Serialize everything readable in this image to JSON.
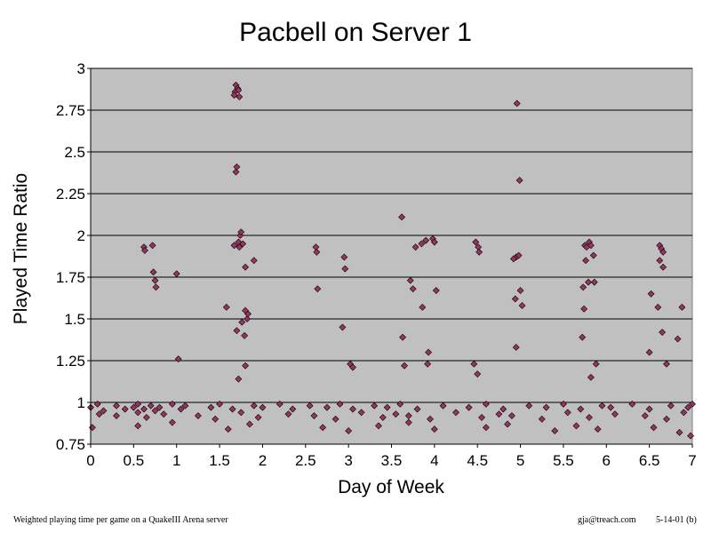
{
  "chart_data": {
    "type": "scatter",
    "title": "Pacbell on Server 1",
    "xlabel": "Day of Week",
    "ylabel": "Played Time Ratio",
    "xlim": [
      0,
      7
    ],
    "ylim": [
      0.75,
      3
    ],
    "x_ticks": [
      "0",
      "0.5",
      "1",
      "1.5",
      "2",
      "2.5",
      "3",
      "3.5",
      "4",
      "4.5",
      "5",
      "5.5",
      "6",
      "6.5",
      "7"
    ],
    "y_ticks": [
      "0.75",
      "1",
      "1.25",
      "1.5",
      "1.75",
      "2",
      "2.25",
      "2.5",
      "2.75",
      "3"
    ],
    "grid": true,
    "legend": "none",
    "colors": {
      "plot_background": "#c0c0c0",
      "marker_fill": "#99335f",
      "marker_edge": "#000000",
      "gridline": "#000000"
    },
    "x": [
      1.69,
      1.71,
      1.68,
      1.72,
      1.73,
      1.67,
      1.7,
      1.69,
      1.74,
      1.75,
      1.72,
      1.77,
      1.73,
      1.67,
      1.58,
      1.7,
      1.72,
      1.76,
      1.82,
      1.83,
      1.9,
      1.8,
      1.8,
      1.79,
      1.8,
      4.96,
      4.99,
      4.95,
      4.98,
      4.92,
      5.0,
      4.94,
      5.02,
      4.95,
      0.62,
      0.63,
      0.72,
      0.73,
      0.75,
      0.76,
      1.0,
      1.02,
      2.62,
      2.63,
      2.64,
      2.95,
      2.96,
      2.93,
      3.02,
      3.05,
      3.62,
      3.63,
      3.65,
      3.72,
      3.75,
      3.78,
      3.85,
      3.9,
      3.93,
      3.92,
      3.98,
      4.0,
      4.02,
      3.86,
      4.48,
      4.51,
      4.52,
      4.46,
      4.5,
      5.75,
      5.77,
      5.8,
      5.82,
      5.76,
      5.79,
      5.73,
      5.86,
      5.74,
      5.85,
      5.72,
      5.88,
      5.82,
      6.5,
      6.52,
      6.62,
      6.64,
      6.66,
      6.62,
      6.66,
      6.6,
      6.65,
      6.7,
      6.83,
      6.88,
      0.0,
      0.08,
      0.15,
      0.3,
      0.4,
      0.5,
      0.55,
      0.62,
      0.7,
      0.75,
      0.8,
      0.95,
      1.05,
      1.1,
      1.4,
      1.5,
      1.65,
      1.9,
      2.0,
      2.2,
      2.35,
      2.55,
      2.75,
      2.9,
      3.05,
      3.3,
      3.45,
      3.6,
      3.8,
      4.1,
      4.4,
      4.6,
      4.8,
      5.1,
      5.3,
      5.5,
      5.7,
      5.95,
      6.05,
      6.3,
      6.5,
      6.75,
      6.95,
      7.0,
      0.1,
      0.3,
      0.55,
      0.65,
      0.85,
      1.25,
      1.45,
      1.75,
      1.95,
      2.3,
      2.6,
      2.85,
      3.15,
      3.4,
      3.55,
      3.7,
      3.95,
      4.25,
      4.55,
      4.75,
      4.9,
      5.25,
      5.55,
      5.8,
      6.1,
      6.45,
      6.7,
      6.9,
      0.02,
      0.55,
      0.95,
      1.6,
      1.85,
      2.7,
      3.0,
      3.35,
      3.7,
      4.0,
      4.6,
      4.85,
      5.4,
      5.65,
      5.9,
      6.55,
      6.85,
      6.98
    ],
    "y": [
      2.9,
      2.88,
      2.86,
      2.87,
      2.83,
      2.84,
      2.41,
      2.38,
      2.0,
      2.02,
      1.96,
      1.95,
      1.93,
      1.94,
      1.57,
      1.43,
      1.14,
      1.48,
      1.5,
      1.53,
      1.85,
      1.81,
      1.22,
      1.4,
      1.55,
      2.79,
      2.33,
      1.87,
      1.88,
      1.86,
      1.67,
      1.62,
      1.58,
      1.33,
      1.93,
      1.91,
      1.94,
      1.78,
      1.73,
      1.69,
      1.77,
      1.26,
      1.93,
      1.9,
      1.68,
      1.87,
      1.8,
      1.45,
      1.23,
      1.21,
      2.11,
      1.39,
      1.22,
      1.73,
      1.68,
      1.93,
      1.95,
      1.97,
      1.3,
      1.23,
      1.98,
      1.96,
      1.67,
      1.57,
      1.96,
      1.93,
      1.9,
      1.23,
      1.17,
      1.94,
      1.93,
      1.96,
      1.94,
      1.85,
      1.72,
      1.69,
      1.72,
      1.56,
      1.88,
      1.39,
      1.23,
      1.15,
      1.3,
      1.65,
      1.94,
      1.92,
      1.9,
      1.85,
      1.81,
      1.57,
      1.42,
      1.23,
      1.38,
      1.57,
      0.97,
      0.99,
      0.95,
      0.98,
      0.96,
      0.97,
      0.99,
      0.96,
      0.98,
      0.95,
      0.97,
      0.99,
      0.96,
      0.98,
      0.97,
      0.99,
      0.96,
      0.98,
      0.97,
      0.99,
      0.96,
      0.98,
      0.97,
      0.99,
      0.96,
      0.98,
      0.97,
      0.99,
      0.96,
      0.98,
      0.97,
      0.99,
      0.96,
      0.98,
      0.97,
      0.99,
      0.96,
      0.98,
      0.97,
      0.99,
      0.96,
      0.98,
      0.97,
      0.99,
      0.93,
      0.92,
      0.94,
      0.91,
      0.93,
      0.92,
      0.9,
      0.94,
      0.91,
      0.93,
      0.92,
      0.9,
      0.94,
      0.91,
      0.93,
      0.92,
      0.9,
      0.94,
      0.91,
      0.93,
      0.92,
      0.9,
      0.94,
      0.91,
      0.93,
      0.92,
      0.9,
      0.94,
      0.85,
      0.86,
      0.88,
      0.84,
      0.87,
      0.85,
      0.83,
      0.86,
      0.88,
      0.84,
      0.85,
      0.87,
      0.83,
      0.86,
      0.84,
      0.85,
      0.82,
      0.8
    ]
  },
  "footer": {
    "left": "Weighted playing time per game on a QuakeIII Arena server",
    "email": "gja@treach.com",
    "date": "5-14-01  (b)"
  }
}
